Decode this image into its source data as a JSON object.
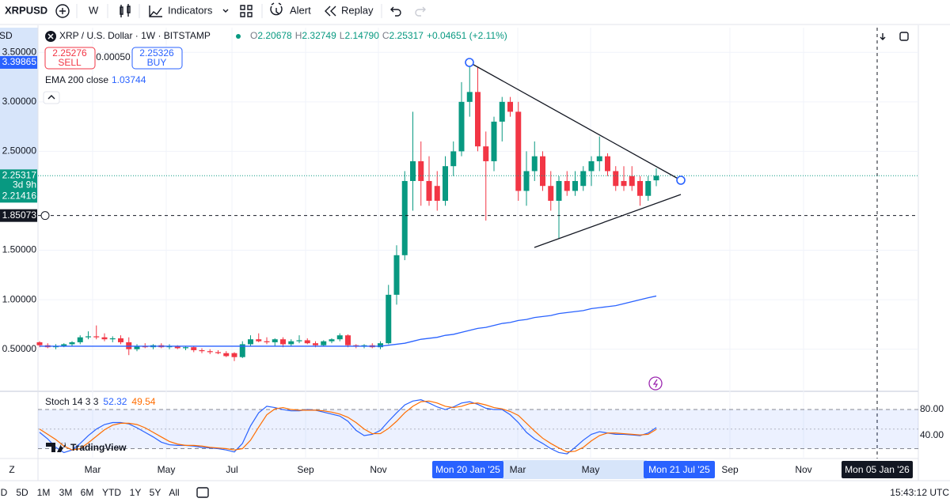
{
  "toolbar": {
    "symbol": "XRPUSD",
    "interval": "W",
    "indicators": "Indicators",
    "alert": "Alert",
    "replay": "Replay"
  },
  "price_axis_unit": "SD",
  "legend": {
    "title": "XRP / U.S. Dollar · 1W · BITSTAMP",
    "o_label": "O",
    "open": "2.20678",
    "h_label": "H",
    "high": "2.32749",
    "l_label": "L",
    "low": "2.14790",
    "c_label": "C",
    "close": "2.25317",
    "change": "+0.04651 (+2.11%)"
  },
  "trade": {
    "sell_price": "2.25276",
    "sell": "SELL",
    "spread": "0.00050",
    "buy_price": "2.25326",
    "buy": "BUY"
  },
  "chart_data": [
    {
      "type": "candlestick",
      "ylim": [
        0.09,
        3.75
      ],
      "yticks": [
        {
          "value": 3.5,
          "label": "3.50000"
        },
        {
          "value": 3.0,
          "label": "3.00000"
        },
        {
          "value": 2.5,
          "label": "2.50000"
        },
        {
          "value": 1.5,
          "label": "1.50000"
        },
        {
          "value": 1.0,
          "label": "1.00000"
        },
        {
          "value": 0.5,
          "label": "0.50000"
        }
      ],
      "grid": true,
      "up_color": "#089981",
      "down_color": "#f23645",
      "candles": [
        [
          0.57,
          0.58,
          0.52,
          0.54
        ],
        [
          0.54,
          0.56,
          0.51,
          0.52
        ],
        [
          0.52,
          0.55,
          0.5,
          0.53
        ],
        [
          0.53,
          0.56,
          0.52,
          0.55
        ],
        [
          0.55,
          0.58,
          0.53,
          0.57
        ],
        [
          0.57,
          0.64,
          0.55,
          0.62
        ],
        [
          0.62,
          0.68,
          0.6,
          0.63
        ],
        [
          0.63,
          0.74,
          0.6,
          0.62
        ],
        [
          0.62,
          0.66,
          0.58,
          0.6
        ],
        [
          0.6,
          0.63,
          0.57,
          0.61
        ],
        [
          0.61,
          0.64,
          0.55,
          0.57
        ],
        [
          0.57,
          0.62,
          0.44,
          0.5
        ],
        [
          0.5,
          0.55,
          0.48,
          0.53
        ],
        [
          0.53,
          0.56,
          0.51,
          0.52
        ],
        [
          0.52,
          0.55,
          0.5,
          0.54
        ],
        [
          0.54,
          0.56,
          0.51,
          0.52
        ],
        [
          0.52,
          0.55,
          0.5,
          0.53
        ],
        [
          0.53,
          0.54,
          0.5,
          0.51
        ],
        [
          0.51,
          0.53,
          0.49,
          0.52
        ],
        [
          0.52,
          0.53,
          0.47,
          0.49
        ],
        [
          0.49,
          0.51,
          0.46,
          0.48
        ],
        [
          0.48,
          0.5,
          0.45,
          0.47
        ],
        [
          0.47,
          0.49,
          0.45,
          0.46
        ],
        [
          0.46,
          0.48,
          0.42,
          0.43
        ],
        [
          0.46,
          0.47,
          0.38,
          0.42
        ],
        [
          0.42,
          0.58,
          0.41,
          0.55
        ],
        [
          0.55,
          0.64,
          0.53,
          0.6
        ],
        [
          0.6,
          0.66,
          0.57,
          0.58
        ],
        [
          0.58,
          0.62,
          0.55,
          0.57
        ],
        [
          0.57,
          0.61,
          0.53,
          0.6
        ],
        [
          0.6,
          0.62,
          0.52,
          0.55
        ],
        [
          0.55,
          0.6,
          0.53,
          0.58
        ],
        [
          0.58,
          0.64,
          0.56,
          0.59
        ],
        [
          0.59,
          0.61,
          0.55,
          0.56
        ],
        [
          0.56,
          0.58,
          0.52,
          0.54
        ],
        [
          0.54,
          0.59,
          0.53,
          0.58
        ],
        [
          0.58,
          0.61,
          0.56,
          0.6
        ],
        [
          0.6,
          0.66,
          0.58,
          0.64
        ],
        [
          0.64,
          0.65,
          0.52,
          0.54
        ],
        [
          0.54,
          0.55,
          0.51,
          0.53
        ],
        [
          0.53,
          0.55,
          0.51,
          0.54
        ],
        [
          0.54,
          0.56,
          0.51,
          0.52
        ],
        [
          0.52,
          0.58,
          0.5,
          0.56
        ],
        [
          0.56,
          1.15,
          0.55,
          1.05
        ],
        [
          1.05,
          1.55,
          0.95,
          1.45
        ],
        [
          1.45,
          2.3,
          1.4,
          2.2
        ],
        [
          2.2,
          2.9,
          1.9,
          2.4
        ],
        [
          2.4,
          2.6,
          1.95,
          2.2
        ],
        [
          2.2,
          2.45,
          1.95,
          2.0
        ],
        [
          2.15,
          2.3,
          1.9,
          2.0
        ],
        [
          2.0,
          2.45,
          1.95,
          2.35
        ],
        [
          2.35,
          2.6,
          2.25,
          2.5
        ],
        [
          2.5,
          3.2,
          2.45,
          3.0
        ],
        [
          3.0,
          3.4,
          2.85,
          3.1
        ],
        [
          3.1,
          3.35,
          2.5,
          2.55
        ],
        [
          2.55,
          2.7,
          1.8,
          2.4
        ],
        [
          2.4,
          2.85,
          2.3,
          2.8
        ],
        [
          2.8,
          3.05,
          2.6,
          3.0
        ],
        [
          3.0,
          3.05,
          2.85,
          2.9
        ],
        [
          2.9,
          3.0,
          2.0,
          2.1
        ],
        [
          2.1,
          2.5,
          1.95,
          2.3
        ],
        [
          2.3,
          2.6,
          2.2,
          2.45
        ],
        [
          2.45,
          2.5,
          2.1,
          2.15
        ],
        [
          2.15,
          2.3,
          1.9,
          2.0
        ],
        [
          2.0,
          2.25,
          1.62,
          2.2
        ],
        [
          2.2,
          2.3,
          2.05,
          2.1
        ],
        [
          2.1,
          2.3,
          2.05,
          2.2
        ],
        [
          2.15,
          2.35,
          2.1,
          2.3
        ],
        [
          2.3,
          2.45,
          2.15,
          2.4
        ],
        [
          2.4,
          2.65,
          2.3,
          2.45
        ],
        [
          2.45,
          2.48,
          2.25,
          2.3
        ],
        [
          2.3,
          2.35,
          2.1,
          2.15
        ],
        [
          2.2,
          2.35,
          2.1,
          2.15
        ],
        [
          2.25,
          2.35,
          2.1,
          2.15
        ],
        [
          2.2,
          2.25,
          1.95,
          2.05
        ],
        [
          2.05,
          2.25,
          2.0,
          2.2
        ],
        [
          2.20678,
          2.32749,
          2.1479,
          2.25317
        ]
      ],
      "overlays": [
        {
          "name": "EMA 200 close",
          "value_label": "1.03744",
          "color": "#2962ff",
          "values": [
            0.53,
            0.53,
            0.53,
            0.53,
            0.53,
            0.53,
            0.53,
            0.53,
            0.53,
            0.53,
            0.53,
            0.53,
            0.53,
            0.53,
            0.53,
            0.53,
            0.53,
            0.53,
            0.53,
            0.53,
            0.53,
            0.53,
            0.53,
            0.53,
            0.53,
            0.53,
            0.53,
            0.53,
            0.53,
            0.53,
            0.53,
            0.53,
            0.53,
            0.53,
            0.53,
            0.53,
            0.53,
            0.53,
            0.53,
            0.53,
            0.53,
            0.53,
            0.53,
            0.54,
            0.55,
            0.56,
            0.58,
            0.6,
            0.61,
            0.62,
            0.64,
            0.65,
            0.67,
            0.69,
            0.71,
            0.72,
            0.74,
            0.76,
            0.77,
            0.79,
            0.8,
            0.82,
            0.83,
            0.84,
            0.86,
            0.87,
            0.88,
            0.89,
            0.91,
            0.92,
            0.93,
            0.94,
            0.96,
            0.98,
            1.0,
            1.02,
            1.03744
          ]
        }
      ],
      "current": {
        "value": 2.25317,
        "label": "2.25317",
        "countdown": "3d 9h",
        "color": "#089981"
      },
      "price_labels": [
        {
          "value": 3.39865,
          "label": "3.39865",
          "color": "#2962ff"
        },
        {
          "value": 2.21416,
          "label": "2.21416",
          "color": "#089981"
        },
        {
          "value": 1.85073,
          "label": "1.85073",
          "color": "#131722"
        }
      ]
    },
    {
      "type": "line",
      "title": "Stoch 14 3 3",
      "ylim": [
        7.3,
        105.5
      ],
      "yticks": [
        {
          "value": 80,
          "label": "80.00"
        },
        {
          "value": 40,
          "label": "40.00"
        }
      ],
      "levels": [
        80,
        50,
        20
      ],
      "series": [
        {
          "name": "%K",
          "value_label": "52.32",
          "color": "#2962ff",
          "values": [
            45,
            35,
            22,
            14,
            18,
            28,
            40,
            50,
            57,
            60,
            60,
            58,
            52,
            45,
            38,
            30,
            26,
            25,
            25,
            24,
            22,
            21,
            20,
            18,
            15,
            28,
            55,
            75,
            85,
            83,
            80,
            78,
            78,
            80,
            79,
            76,
            73,
            70,
            62,
            48,
            40,
            42,
            48,
            62,
            75,
            87,
            93,
            95,
            90,
            84,
            80,
            84,
            90,
            92,
            88,
            82,
            80,
            80,
            72,
            60,
            45,
            35,
            28,
            20,
            14,
            12,
            22,
            33,
            42,
            46,
            44,
            42,
            42,
            41,
            40,
            44,
            52.32
          ]
        },
        {
          "name": "%D",
          "value_label": "49.54",
          "color": "#ff6d00",
          "values": [
            50,
            42,
            34,
            24,
            18,
            20,
            29,
            39,
            49,
            56,
            59,
            59,
            57,
            52,
            45,
            38,
            31,
            27,
            25,
            25,
            24,
            22,
            21,
            20,
            18,
            20,
            33,
            53,
            72,
            81,
            83,
            80,
            79,
            79,
            79,
            78,
            76,
            73,
            68,
            60,
            50,
            43,
            43,
            51,
            62,
            75,
            85,
            92,
            93,
            90,
            85,
            83,
            85,
            89,
            90,
            87,
            83,
            81,
            77,
            71,
            59,
            47,
            36,
            28,
            21,
            15,
            16,
            22,
            32,
            40,
            44,
            44,
            43,
            42,
            41,
            42,
            49.54
          ]
        }
      ]
    }
  ],
  "brand": "TradingView",
  "time_axis": [
    "Mar",
    "May",
    "Jul",
    "Sep",
    "Nov",
    "Mon 20 Jan '25",
    "Mar",
    "May",
    "Mon 21 Jul '25",
    "Sep",
    "Nov",
    "Mon 05 Jan '26"
  ],
  "scale_mode": "Z",
  "bottom_bar": {
    "ranges": [
      "D",
      "5D",
      "1M",
      "3M",
      "6M",
      "YTD",
      "1Y",
      "5Y",
      "All"
    ],
    "clock": "15:43:12 UTC"
  }
}
